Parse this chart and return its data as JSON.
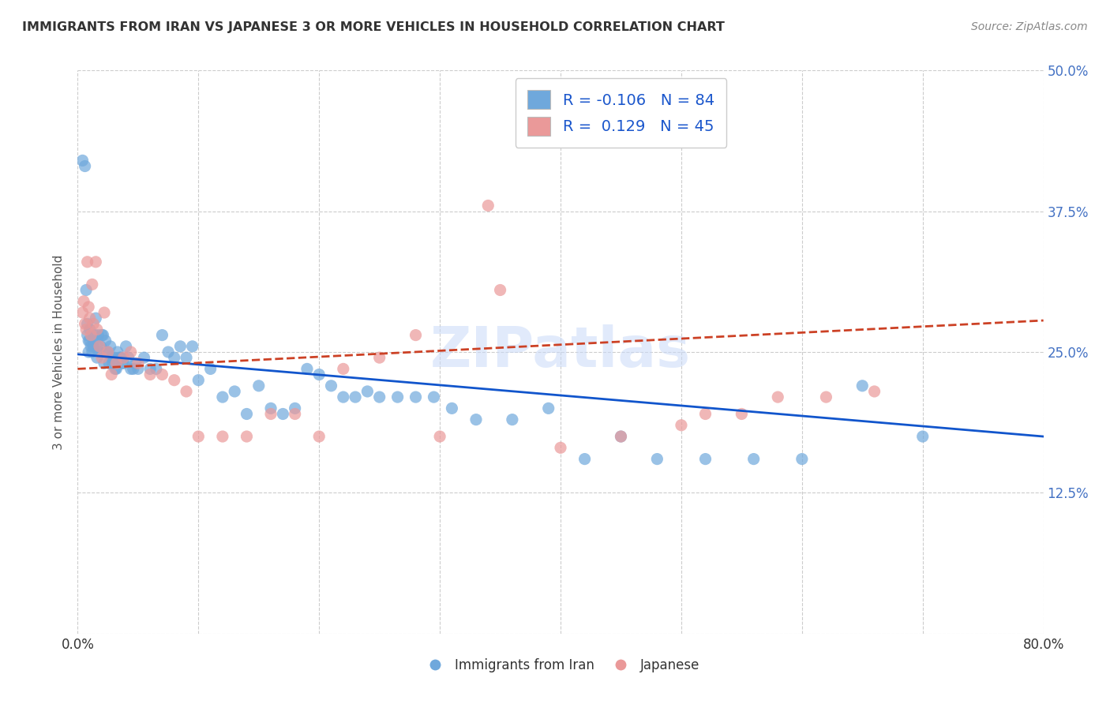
{
  "title": "IMMIGRANTS FROM IRAN VS JAPANESE 3 OR MORE VEHICLES IN HOUSEHOLD CORRELATION CHART",
  "source": "Source: ZipAtlas.com",
  "ylabel": "3 or more Vehicles in Household",
  "x_min": 0.0,
  "x_max": 0.8,
  "y_min": 0.0,
  "y_max": 0.5,
  "y_ticks_right": [
    0.125,
    0.25,
    0.375,
    0.5
  ],
  "y_tick_labels_right": [
    "12.5%",
    "25.0%",
    "37.5%",
    "50.0%"
  ],
  "legend_R": [
    "-0.106",
    "0.129"
  ],
  "legend_N": [
    "84",
    "45"
  ],
  "blue_color": "#6fa8dc",
  "pink_color": "#ea9999",
  "blue_line_color": "#1155cc",
  "pink_line_color": "#cc4125",
  "watermark": "ZIPatlas",
  "blue_scatter_x": [
    0.004,
    0.006,
    0.007,
    0.008,
    0.008,
    0.009,
    0.009,
    0.01,
    0.01,
    0.011,
    0.012,
    0.013,
    0.013,
    0.014,
    0.015,
    0.016,
    0.016,
    0.017,
    0.018,
    0.019,
    0.02,
    0.021,
    0.022,
    0.023,
    0.024,
    0.025,
    0.026,
    0.027,
    0.028,
    0.029,
    0.03,
    0.031,
    0.032,
    0.033,
    0.035,
    0.036,
    0.037,
    0.038,
    0.04,
    0.042,
    0.044,
    0.046,
    0.048,
    0.05,
    0.055,
    0.06,
    0.065,
    0.07,
    0.075,
    0.08,
    0.085,
    0.09,
    0.095,
    0.1,
    0.11,
    0.12,
    0.13,
    0.14,
    0.15,
    0.16,
    0.17,
    0.18,
    0.19,
    0.2,
    0.21,
    0.22,
    0.23,
    0.24,
    0.25,
    0.265,
    0.28,
    0.295,
    0.31,
    0.33,
    0.36,
    0.39,
    0.42,
    0.45,
    0.48,
    0.52,
    0.56,
    0.6,
    0.65,
    0.7
  ],
  "blue_scatter_y": [
    0.42,
    0.415,
    0.305,
    0.265,
    0.275,
    0.25,
    0.26,
    0.26,
    0.27,
    0.255,
    0.25,
    0.255,
    0.26,
    0.265,
    0.28,
    0.245,
    0.255,
    0.265,
    0.25,
    0.255,
    0.265,
    0.265,
    0.24,
    0.26,
    0.25,
    0.25,
    0.24,
    0.255,
    0.245,
    0.24,
    0.245,
    0.235,
    0.235,
    0.25,
    0.245,
    0.245,
    0.24,
    0.24,
    0.255,
    0.245,
    0.235,
    0.235,
    0.24,
    0.235,
    0.245,
    0.235,
    0.235,
    0.265,
    0.25,
    0.245,
    0.255,
    0.245,
    0.255,
    0.225,
    0.235,
    0.21,
    0.215,
    0.195,
    0.22,
    0.2,
    0.195,
    0.2,
    0.235,
    0.23,
    0.22,
    0.21,
    0.21,
    0.215,
    0.21,
    0.21,
    0.21,
    0.21,
    0.2,
    0.19,
    0.19,
    0.2,
    0.155,
    0.175,
    0.155,
    0.155,
    0.155,
    0.155,
    0.22,
    0.175
  ],
  "pink_scatter_x": [
    0.004,
    0.005,
    0.006,
    0.007,
    0.008,
    0.009,
    0.01,
    0.011,
    0.012,
    0.013,
    0.015,
    0.016,
    0.018,
    0.02,
    0.022,
    0.025,
    0.028,
    0.032,
    0.038,
    0.044,
    0.05,
    0.06,
    0.07,
    0.08,
    0.09,
    0.1,
    0.12,
    0.14,
    0.16,
    0.18,
    0.2,
    0.22,
    0.25,
    0.28,
    0.3,
    0.34,
    0.35,
    0.4,
    0.45,
    0.5,
    0.52,
    0.55,
    0.58,
    0.62,
    0.66
  ],
  "pink_scatter_y": [
    0.285,
    0.295,
    0.275,
    0.27,
    0.33,
    0.29,
    0.28,
    0.265,
    0.31,
    0.275,
    0.33,
    0.27,
    0.255,
    0.245,
    0.285,
    0.25,
    0.23,
    0.24,
    0.245,
    0.25,
    0.24,
    0.23,
    0.23,
    0.225,
    0.215,
    0.175,
    0.175,
    0.175,
    0.195,
    0.195,
    0.175,
    0.235,
    0.245,
    0.265,
    0.175,
    0.38,
    0.305,
    0.165,
    0.175,
    0.185,
    0.195,
    0.195,
    0.21,
    0.21,
    0.215
  ],
  "blue_trend_x": [
    0.0,
    0.8
  ],
  "blue_trend_y": [
    0.248,
    0.175
  ],
  "pink_trend_x": [
    0.0,
    0.8
  ],
  "pink_trend_y": [
    0.235,
    0.278
  ]
}
